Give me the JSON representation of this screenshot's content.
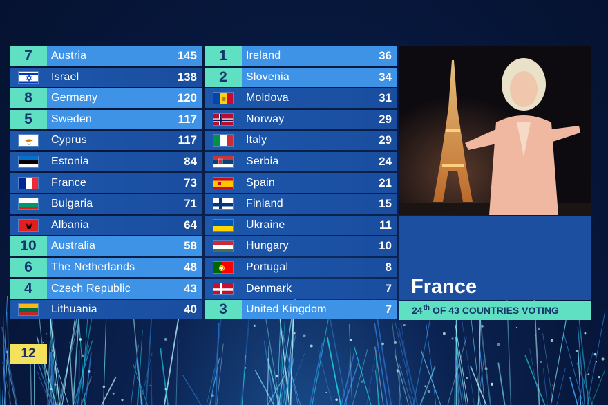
{
  "left_rows": [
    {
      "points": "7",
      "country": "Austria",
      "score": "145",
      "flag": "at"
    },
    {
      "points": "",
      "country": "Israel",
      "score": "138",
      "flag": "il"
    },
    {
      "points": "8",
      "country": "Germany",
      "score": "120",
      "flag": "de"
    },
    {
      "points": "5",
      "country": "Sweden",
      "score": "117",
      "flag": "se"
    },
    {
      "points": "",
      "country": "Cyprus",
      "score": "117",
      "flag": "cy"
    },
    {
      "points": "",
      "country": "Estonia",
      "score": "84",
      "flag": "ee"
    },
    {
      "points": "",
      "country": "France",
      "score": "73",
      "flag": "fr"
    },
    {
      "points": "",
      "country": "Bulgaria",
      "score": "71",
      "flag": "bg"
    },
    {
      "points": "",
      "country": "Albania",
      "score": "64",
      "flag": "al"
    },
    {
      "points": "10",
      "country": "Australia",
      "score": "58",
      "flag": "au"
    },
    {
      "points": "6",
      "country": "The Netherlands",
      "score": "48",
      "flag": "nl"
    },
    {
      "points": "4",
      "country": "Czech Republic",
      "score": "43",
      "flag": "cz"
    },
    {
      "points": "",
      "country": "Lithuania",
      "score": "40",
      "flag": "lt"
    }
  ],
  "mid_rows": [
    {
      "points": "1",
      "country": "Ireland",
      "score": "36",
      "flag": "ie"
    },
    {
      "points": "2",
      "country": "Slovenia",
      "score": "34",
      "flag": "si"
    },
    {
      "points": "",
      "country": "Moldova",
      "score": "31",
      "flag": "md"
    },
    {
      "points": "",
      "country": "Norway",
      "score": "29",
      "flag": "no"
    },
    {
      "points": "",
      "country": "Italy",
      "score": "29",
      "flag": "it"
    },
    {
      "points": "",
      "country": "Serbia",
      "score": "24",
      "flag": "rs"
    },
    {
      "points": "",
      "country": "Spain",
      "score": "21",
      "flag": "es"
    },
    {
      "points": "",
      "country": "Finland",
      "score": "15",
      "flag": "fi"
    },
    {
      "points": "",
      "country": "Ukraine",
      "score": "11",
      "flag": "ua"
    },
    {
      "points": "",
      "country": "Hungary",
      "score": "10",
      "flag": "hu"
    },
    {
      "points": "",
      "country": "Portugal",
      "score": "8",
      "flag": "pt"
    },
    {
      "points": "",
      "country": "Denmark",
      "score": "7",
      "flag": "dk"
    },
    {
      "points": "3",
      "country": "United Kingdom",
      "score": "7",
      "flag": "gb"
    }
  ],
  "voter": {
    "country": "France",
    "rank_number": "24",
    "rank_suffix": "th",
    "rank_text": "OF 43 COUNTRIES VOTING"
  },
  "pending_points": "12",
  "colors": {
    "row": "#1d58ad",
    "row_highlight": "#3f93e6",
    "points_box": "#5fe0c3",
    "twelve_box": "#f4e25c",
    "info_panel": "#1c4fa0"
  }
}
